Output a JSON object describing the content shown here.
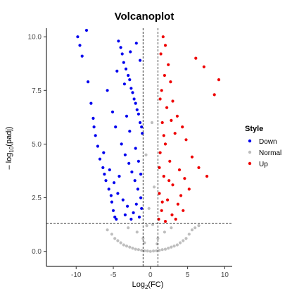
{
  "chart_data": {
    "type": "scatter",
    "title": "Volcanoplot",
    "xlabel": {
      "main": "Log",
      "sub": "2",
      "suffix": "(FC)"
    },
    "ylabel": {
      "prefix": "– log",
      "sub": "10",
      "suffix": "(padj)"
    },
    "xlim": [
      -14,
      11
    ],
    "ylim": [
      -0.7,
      10.4
    ],
    "x_ticks": [
      -10,
      -5,
      0,
      5,
      10
    ],
    "y_ticks": [
      0.0,
      2.5,
      5.0,
      7.5,
      10.0
    ],
    "y_tick_labels": [
      "0.0",
      "2.5",
      "5.0",
      "7.5",
      "10.0"
    ],
    "fc_threshold": [
      -1,
      1
    ],
    "padj_threshold_log10": 1.3,
    "legend": {
      "title": "Style",
      "position": "right",
      "entries": [
        {
          "name": "Down",
          "color": "#0000ee"
        },
        {
          "name": "Normal",
          "color": "#bebebe"
        },
        {
          "name": "Up",
          "color": "#ee0000"
        }
      ]
    },
    "series": [
      {
        "name": "Down",
        "color": "#0000ee",
        "points": [
          [
            -9.8,
            10.0
          ],
          [
            -9.5,
            9.6
          ],
          [
            -9.2,
            9.1
          ],
          [
            -8.6,
            10.3
          ],
          [
            -8.4,
            7.9
          ],
          [
            -8.0,
            6.9
          ],
          [
            -7.7,
            6.2
          ],
          [
            -7.6,
            5.8
          ],
          [
            -7.4,
            5.4
          ],
          [
            -7.1,
            4.9
          ],
          [
            -6.8,
            4.3
          ],
          [
            -6.4,
            3.9
          ],
          [
            -6.2,
            3.6
          ],
          [
            -6.0,
            3.3
          ],
          [
            -5.6,
            2.9
          ],
          [
            -5.3,
            2.6
          ],
          [
            -5.2,
            2.3
          ],
          [
            -5.0,
            1.9
          ],
          [
            -4.8,
            1.6
          ],
          [
            -4.6,
            1.5
          ],
          [
            -4.3,
            9.8
          ],
          [
            -4.0,
            9.5
          ],
          [
            -3.8,
            9.2
          ],
          [
            -3.6,
            8.8
          ],
          [
            -3.3,
            8.5
          ],
          [
            -3.0,
            8.2
          ],
          [
            -2.8,
            8.0
          ],
          [
            -2.6,
            7.6
          ],
          [
            -2.4,
            7.4
          ],
          [
            -2.2,
            7.1
          ],
          [
            -2.0,
            6.9
          ],
          [
            -1.8,
            6.6
          ],
          [
            -1.6,
            6.4
          ],
          [
            -1.4,
            6.0
          ],
          [
            -1.2,
            5.8
          ],
          [
            -1.1,
            5.5
          ],
          [
            -5.8,
            7.5
          ],
          [
            -5.1,
            6.5
          ],
          [
            -4.7,
            5.8
          ],
          [
            -3.9,
            5.0
          ],
          [
            -3.4,
            4.5
          ],
          [
            -2.9,
            4.1
          ],
          [
            -2.5,
            3.7
          ],
          [
            -2.1,
            3.3
          ],
          [
            -1.7,
            2.9
          ],
          [
            -1.3,
            2.5
          ],
          [
            -1.2,
            2.0
          ],
          [
            -1.5,
            1.6
          ],
          [
            -2.3,
            1.8
          ],
          [
            -3.1,
            2.1
          ],
          [
            -3.7,
            2.4
          ],
          [
            -4.4,
            2.7
          ],
          [
            -4.9,
            3.2
          ],
          [
            -5.5,
            3.8
          ],
          [
            -6.3,
            4.6
          ],
          [
            -1.9,
            9.7
          ],
          [
            -2.7,
            9.3
          ],
          [
            -1.4,
            8.9
          ],
          [
            -3.5,
            7.8
          ],
          [
            -4.5,
            8.4
          ],
          [
            -2.0,
            4.8
          ],
          [
            -1.6,
            4.2
          ],
          [
            -2.8,
            5.6
          ],
          [
            -3.2,
            6.3
          ],
          [
            -1.3,
            3.6
          ],
          [
            -4.2,
            3.5
          ],
          [
            -1.9,
            2.2
          ],
          [
            -3.4,
            1.7
          ],
          [
            -2.6,
            1.5
          ]
        ]
      },
      {
        "name": "Up",
        "color": "#ee0000",
        "points": [
          [
            1.7,
            10.0
          ],
          [
            2.0,
            9.6
          ],
          [
            1.4,
            9.2
          ],
          [
            6.1,
            9.0
          ],
          [
            7.2,
            8.6
          ],
          [
            9.2,
            8.0
          ],
          [
            8.6,
            7.3
          ],
          [
            2.4,
            8.7
          ],
          [
            2.7,
            7.9
          ],
          [
            1.5,
            7.5
          ],
          [
            3.0,
            7.0
          ],
          [
            2.2,
            6.7
          ],
          [
            3.6,
            6.3
          ],
          [
            4.3,
            5.8
          ],
          [
            4.8,
            5.2
          ],
          [
            3.3,
            5.5
          ],
          [
            1.6,
            6.0
          ],
          [
            2.0,
            5.0
          ],
          [
            5.6,
            4.4
          ],
          [
            6.5,
            3.9
          ],
          [
            7.6,
            3.5
          ],
          [
            1.3,
            4.6
          ],
          [
            2.6,
            4.2
          ],
          [
            3.9,
            3.8
          ],
          [
            4.6,
            3.4
          ],
          [
            5.2,
            2.9
          ],
          [
            1.8,
            3.5
          ],
          [
            3.0,
            3.1
          ],
          [
            1.2,
            2.7
          ],
          [
            2.3,
            2.4
          ],
          [
            3.7,
            2.2
          ],
          [
            4.4,
            1.9
          ],
          [
            1.5,
            1.9
          ],
          [
            2.9,
            1.7
          ],
          [
            1.1,
            1.5
          ],
          [
            2.0,
            1.4
          ],
          [
            3.4,
            1.5
          ],
          [
            1.6,
            2.3
          ],
          [
            2.5,
            3.3
          ],
          [
            1.2,
            3.9
          ],
          [
            4.1,
            2.6
          ],
          [
            1.9,
            8.2
          ],
          [
            1.3,
            7.1
          ],
          [
            2.8,
            6.1
          ],
          [
            1.8,
            5.4
          ]
        ]
      },
      {
        "name": "Normal",
        "color": "#bebebe",
        "points": [
          [
            -5.8,
            1.0
          ],
          [
            -5.2,
            0.8
          ],
          [
            -4.8,
            0.6
          ],
          [
            -4.4,
            0.5
          ],
          [
            -4.0,
            0.4
          ],
          [
            -3.6,
            0.3
          ],
          [
            -3.2,
            0.25
          ],
          [
            -2.8,
            0.2
          ],
          [
            -2.4,
            0.15
          ],
          [
            -2.0,
            0.1
          ],
          [
            -1.6,
            0.08
          ],
          [
            -1.2,
            0.05
          ],
          [
            -0.8,
            0.03
          ],
          [
            -0.4,
            0.02
          ],
          [
            0.0,
            0.0
          ],
          [
            0.4,
            0.02
          ],
          [
            0.8,
            0.03
          ],
          [
            1.2,
            0.05
          ],
          [
            1.6,
            0.08
          ],
          [
            2.0,
            0.1
          ],
          [
            2.4,
            0.15
          ],
          [
            2.8,
            0.2
          ],
          [
            3.2,
            0.25
          ],
          [
            3.6,
            0.3
          ],
          [
            4.0,
            0.4
          ],
          [
            4.4,
            0.5
          ],
          [
            4.8,
            0.6
          ],
          [
            5.2,
            0.8
          ],
          [
            5.6,
            1.0
          ],
          [
            6.0,
            1.1
          ],
          [
            6.5,
            1.2
          ],
          [
            -0.5,
            1.2
          ],
          [
            0.3,
            1.25
          ],
          [
            -0.2,
            2.0
          ],
          [
            0.5,
            3.0
          ],
          [
            -0.6,
            4.5
          ],
          [
            0.2,
            6.0
          ],
          [
            -3.0,
            1.1
          ],
          [
            2.8,
            1.1
          ],
          [
            -1.8,
            0.9
          ],
          [
            1.9,
            0.9
          ],
          [
            -1.0,
            0.6
          ],
          [
            1.0,
            0.6
          ],
          [
            -0.8,
            0.4
          ],
          [
            0.9,
            0.35
          ]
        ]
      }
    ]
  }
}
